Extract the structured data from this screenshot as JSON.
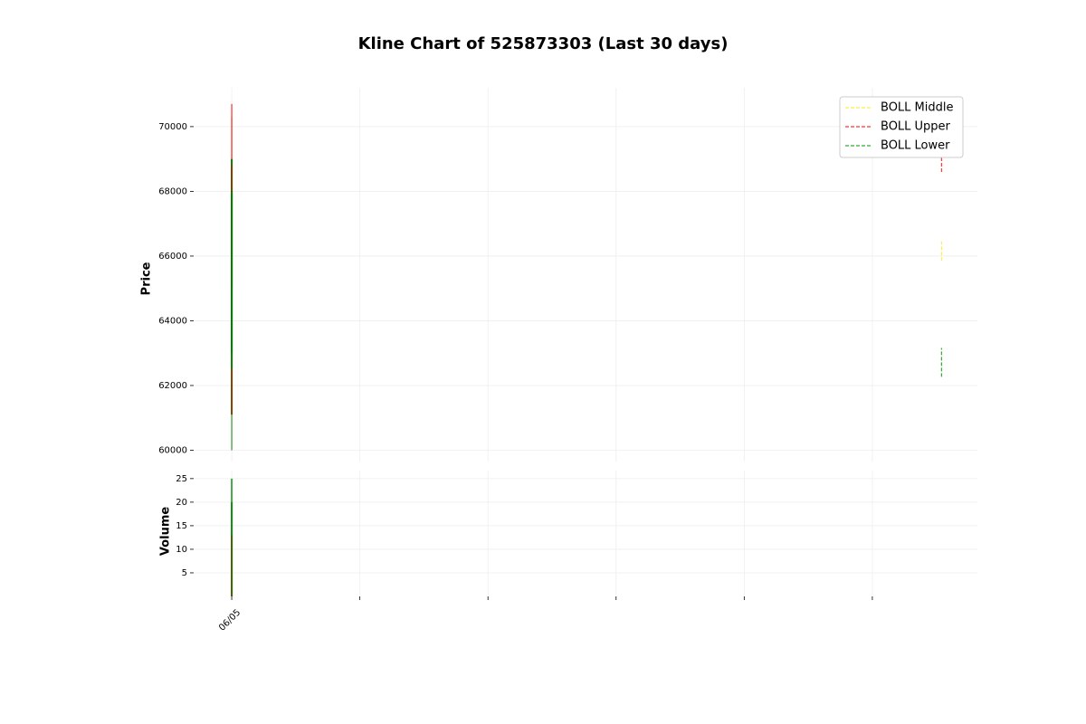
{
  "chart_data": {
    "type": "candlestick",
    "title": "Kline Chart of 525873303 (Last 30 days)",
    "y_label": "Price",
    "y2_label": "Volume",
    "xlim": [
      -0.29,
      5.82
    ],
    "xticks": [
      0,
      1,
      2,
      3,
      4,
      5
    ],
    "x_tick_labels": [
      "06/05",
      null,
      null,
      null,
      null,
      null
    ],
    "ylim": [
      59650,
      71200
    ],
    "yticks": [
      60000,
      62000,
      64000,
      66000,
      68000,
      70000
    ],
    "y2lim": [
      0,
      26.7
    ],
    "y2ticks": [
      5,
      10,
      15,
      20,
      25
    ],
    "grid": true,
    "up_color": "#008000",
    "down_color": "#ff0000",
    "candles": {
      "x": [
        0,
        0,
        0
      ],
      "open": [
        61100,
        68800,
        63000
      ],
      "high": [
        70300,
        70700,
        69000
      ],
      "low": [
        60000,
        61100,
        62500
      ],
      "close": [
        69000,
        65000,
        68000
      ],
      "volume": [
        25,
        13,
        20
      ]
    },
    "legend_position": "upper right",
    "series": [
      {
        "name": "BOLL Middle",
        "color": "#ffee44",
        "x": [
          5.54,
          5.54
        ],
        "values": [
          65850,
          66450
        ]
      },
      {
        "name": "BOLL Upper",
        "color": "#ff3333",
        "x": [
          5.54,
          5.54
        ],
        "values": [
          68600,
          69450
        ]
      },
      {
        "name": "BOLL Lower",
        "color": "#33aa33",
        "x": [
          5.54,
          5.54
        ],
        "values": [
          62270,
          63160
        ]
      }
    ]
  }
}
